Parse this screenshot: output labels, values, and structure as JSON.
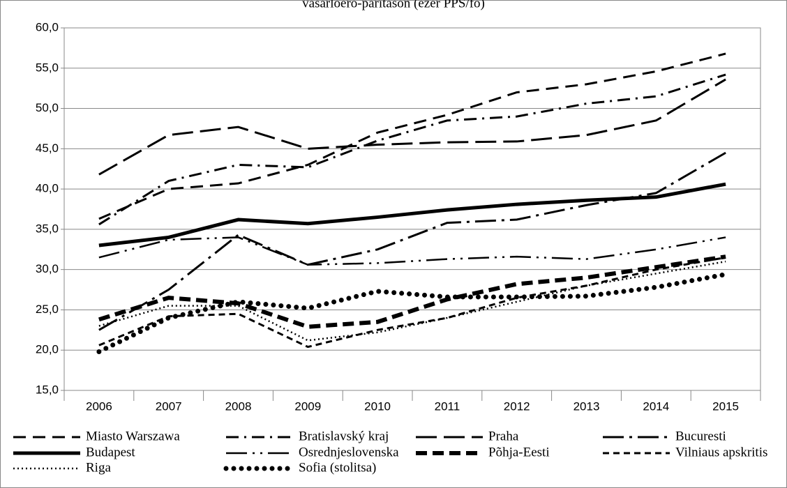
{
  "chart_data": {
    "type": "line",
    "title": "vásárlóerő-paritáson (ezer PPS/fő)",
    "categories": [
      "2006",
      "2007",
      "2008",
      "2009",
      "2010",
      "2011",
      "2012",
      "2013",
      "2014",
      "2015"
    ],
    "ylim": [
      15,
      60
    ],
    "yticks": [
      {
        "value": 15,
        "label": "15,0"
      },
      {
        "value": 20,
        "label": "20,0"
      },
      {
        "value": 25,
        "label": "25,0"
      },
      {
        "value": 30,
        "label": "30,0"
      },
      {
        "value": 35,
        "label": "35,0"
      },
      {
        "value": 40,
        "label": "40,0"
      },
      {
        "value": 45,
        "label": "45,0"
      },
      {
        "value": 50,
        "label": "50,0"
      },
      {
        "value": 55,
        "label": "55,0"
      },
      {
        "value": 60,
        "label": "60,0"
      }
    ],
    "grid": true,
    "series": [
      {
        "name": "Miasto Warszawa",
        "color": "#000000",
        "dash": "18 10",
        "width": 3,
        "values": [
          36.3,
          40.0,
          40.7,
          43.0,
          47.0,
          49.2,
          52.0,
          53.0,
          54.6,
          56.8
        ]
      },
      {
        "name": "Bratislavský kraj",
        "color": "#000000",
        "dash": "18 8 3 8",
        "width": 3,
        "values": [
          35.6,
          41.0,
          43.0,
          42.7,
          46.0,
          48.5,
          49.0,
          50.6,
          51.5,
          54.2
        ]
      },
      {
        "name": "Praha",
        "color": "#000000",
        "dash": "30 10",
        "width": 3,
        "values": [
          41.8,
          46.7,
          47.7,
          45.0,
          45.5,
          45.8,
          45.9,
          46.7,
          48.5,
          53.6
        ]
      },
      {
        "name": "Bucuresti",
        "color": "#000000",
        "dash": "30 8 4 8",
        "width": 3,
        "values": [
          22.5,
          27.5,
          34.3,
          30.6,
          32.5,
          35.8,
          36.2,
          38.0,
          39.5,
          44.5
        ]
      },
      {
        "name": "Budapest",
        "color": "#000000",
        "dash": "none",
        "width": 5,
        "values": [
          33.0,
          34.0,
          36.2,
          35.7,
          36.5,
          37.4,
          38.1,
          38.6,
          39.0,
          40.6
        ]
      },
      {
        "name": "Osrednjeslovenska",
        "color": "#000000",
        "dash": "30 8 3 8 3 8",
        "width": 2.5,
        "values": [
          31.5,
          33.7,
          34.0,
          30.6,
          30.8,
          31.3,
          31.6,
          31.3,
          32.5,
          34.0
        ]
      },
      {
        "name": "Põhja-Eesti",
        "color": "#000000",
        "dash": "16 8",
        "width": 6,
        "values": [
          23.8,
          26.5,
          25.8,
          22.9,
          23.5,
          26.3,
          28.2,
          29.0,
          30.3,
          31.6
        ]
      },
      {
        "name": "Vilniaus apskritis",
        "color": "#000000",
        "dash": "9 6",
        "width": 3,
        "values": [
          20.6,
          24.2,
          24.5,
          20.4,
          22.5,
          24.0,
          26.5,
          28.0,
          30.0,
          31.5
        ]
      },
      {
        "name": "Riga",
        "color": "#000000",
        "dash": "2 4",
        "width": 2.5,
        "values": [
          23.0,
          25.5,
          25.5,
          21.2,
          22.2,
          24.0,
          26.0,
          28.0,
          29.5,
          31.0
        ]
      },
      {
        "name": "Sofia (stolitsa)",
        "color": "#000000",
        "dash": "0 11",
        "width": 7,
        "values": [
          19.8,
          24.0,
          26.0,
          25.2,
          27.3,
          26.6,
          26.6,
          26.7,
          27.8,
          29.4
        ]
      }
    ]
  }
}
